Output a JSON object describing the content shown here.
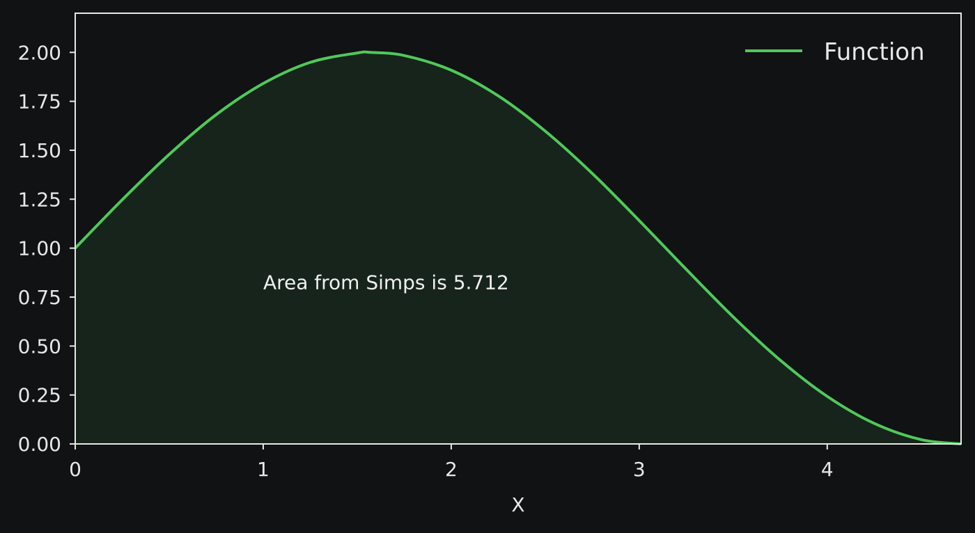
{
  "chart_data": {
    "type": "area",
    "title": "",
    "xlabel": "X",
    "ylabel": "",
    "xlim": [
      0,
      4.712
    ],
    "ylim": [
      0,
      2.2
    ],
    "x_ticks": [
      0,
      1,
      2,
      3,
      4
    ],
    "x_tick_labels": [
      "0",
      "1",
      "2",
      "3",
      "4"
    ],
    "y_ticks": [
      0,
      0.25,
      0.5,
      0.75,
      1.0,
      1.25,
      1.5,
      1.75,
      2.0
    ],
    "y_tick_labels": [
      "0.00",
      "0.25",
      "0.50",
      "0.75",
      "1.00",
      "1.25",
      "1.50",
      "1.75",
      "2.00"
    ],
    "grid": false,
    "legend_placement": "top-right",
    "series": [
      {
        "name": "Function",
        "color": "#4fc95a",
        "fill_color": "#17241b",
        "x": [
          0,
          0.25,
          0.5,
          0.75,
          1.0,
          1.25,
          1.5,
          1.571,
          1.75,
          2.0,
          2.25,
          2.5,
          2.75,
          3.0,
          3.25,
          3.5,
          3.75,
          4.0,
          4.25,
          4.5,
          4.712
        ],
        "y": [
          1.0,
          1.247,
          1.479,
          1.682,
          1.841,
          1.949,
          1.997,
          2.0,
          1.984,
          1.909,
          1.778,
          1.598,
          1.382,
          1.141,
          0.892,
          0.649,
          0.428,
          0.243,
          0.105,
          0.022,
          0.0
        ]
      }
    ],
    "annotations": [
      {
        "text": "Area from Simps is 5.712",
        "x": 1.0,
        "y": 0.79
      }
    ]
  },
  "colors": {
    "background": "#101214",
    "axes": "#e8e8e8",
    "text": "#e8e8e8"
  }
}
